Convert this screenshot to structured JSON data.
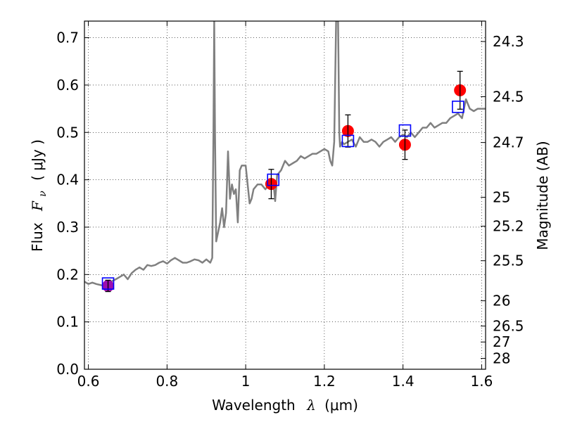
{
  "chart_data": {
    "type": "scatter",
    "xlabel_text": "Wavelength",
    "xlabel_symbol": "λ",
    "xlabel_unit": "(μm)",
    "ylabel_text": "Flux",
    "ylabel_symbol": "F",
    "ylabel_subscript": "ν",
    "ylabel_unit": "( μJy )",
    "y2label": "Magnitude (AB)",
    "xlim": [
      0.59,
      1.61
    ],
    "ylim": [
      0.0,
      0.735
    ],
    "grid": true,
    "x_ticks": [
      {
        "value": 0.6,
        "label": "0.6"
      },
      {
        "value": 0.8,
        "label": "0.8"
      },
      {
        "value": 1.0,
        "label": "1"
      },
      {
        "value": 1.2,
        "label": "1.2"
      },
      {
        "value": 1.4,
        "label": "1.4"
      },
      {
        "value": 1.6,
        "label": "1.6"
      }
    ],
    "y_ticks": [
      {
        "value": 0.0,
        "label": "0.0"
      },
      {
        "value": 0.1,
        "label": "0.1"
      },
      {
        "value": 0.2,
        "label": "0.2"
      },
      {
        "value": 0.3,
        "label": "0.3"
      },
      {
        "value": 0.4,
        "label": "0.4"
      },
      {
        "value": 0.5,
        "label": "0.5"
      },
      {
        "value": 0.6,
        "label": "0.6"
      },
      {
        "value": 0.7,
        "label": "0.7"
      }
    ],
    "y2_ticks": [
      {
        "value": 24.3,
        "label": "24.3"
      },
      {
        "value": 24.5,
        "label": "24.5"
      },
      {
        "value": 24.7,
        "label": "24.7"
      },
      {
        "value": 25.0,
        "label": "25"
      },
      {
        "value": 25.2,
        "label": "25.2"
      },
      {
        "value": 25.5,
        "label": "25.5"
      },
      {
        "value": 26.0,
        "label": "26"
      },
      {
        "value": 26.5,
        "label": "26.5"
      },
      {
        "value": 27.0,
        "label": "27"
      },
      {
        "value": 28.0,
        "label": "28"
      }
    ],
    "template_spectrum": {
      "color": "#808080",
      "x": [
        0.59,
        0.6,
        0.61,
        0.62,
        0.63,
        0.64,
        0.65,
        0.66,
        0.67,
        0.68,
        0.69,
        0.7,
        0.71,
        0.72,
        0.73,
        0.74,
        0.75,
        0.76,
        0.77,
        0.78,
        0.79,
        0.8,
        0.81,
        0.82,
        0.83,
        0.84,
        0.85,
        0.86,
        0.87,
        0.88,
        0.89,
        0.9,
        0.91,
        0.915,
        0.918,
        0.92,
        0.922,
        0.925,
        0.93,
        0.935,
        0.94,
        0.945,
        0.95,
        0.955,
        0.96,
        0.965,
        0.97,
        0.975,
        0.98,
        0.985,
        0.99,
        0.995,
        1.0,
        1.01,
        1.015,
        1.02,
        1.03,
        1.04,
        1.05,
        1.06,
        1.07,
        1.075,
        1.08,
        1.09,
        1.1,
        1.11,
        1.12,
        1.13,
        1.14,
        1.15,
        1.16,
        1.17,
        1.18,
        1.19,
        1.2,
        1.21,
        1.215,
        1.22,
        1.225,
        1.23,
        1.232,
        1.235,
        1.238,
        1.24,
        1.245,
        1.25,
        1.26,
        1.27,
        1.28,
        1.29,
        1.3,
        1.31,
        1.32,
        1.33,
        1.34,
        1.35,
        1.36,
        1.37,
        1.38,
        1.39,
        1.4,
        1.41,
        1.42,
        1.43,
        1.44,
        1.45,
        1.46,
        1.47,
        1.48,
        1.49,
        1.5,
        1.51,
        1.52,
        1.53,
        1.54,
        1.55,
        1.56,
        1.57,
        1.58,
        1.59,
        1.6,
        1.61
      ],
      "y": [
        0.185,
        0.18,
        0.183,
        0.18,
        0.178,
        0.176,
        0.182,
        0.186,
        0.19,
        0.195,
        0.2,
        0.19,
        0.203,
        0.21,
        0.215,
        0.21,
        0.22,
        0.218,
        0.22,
        0.225,
        0.228,
        0.223,
        0.23,
        0.235,
        0.23,
        0.225,
        0.225,
        0.228,
        0.232,
        0.23,
        0.225,
        0.232,
        0.225,
        0.235,
        0.5,
        0.735,
        0.5,
        0.27,
        0.29,
        0.31,
        0.34,
        0.3,
        0.33,
        0.46,
        0.36,
        0.39,
        0.37,
        0.38,
        0.31,
        0.42,
        0.43,
        0.43,
        0.43,
        0.35,
        0.36,
        0.38,
        0.39,
        0.39,
        0.38,
        0.39,
        0.4,
        0.355,
        0.41,
        0.42,
        0.44,
        0.43,
        0.435,
        0.44,
        0.45,
        0.445,
        0.45,
        0.455,
        0.455,
        0.46,
        0.465,
        0.46,
        0.44,
        0.43,
        0.48,
        0.735,
        0.735,
        0.735,
        0.5,
        0.47,
        0.48,
        0.475,
        0.48,
        0.485,
        0.47,
        0.49,
        0.48,
        0.48,
        0.485,
        0.48,
        0.47,
        0.48,
        0.485,
        0.49,
        0.48,
        0.49,
        0.495,
        0.49,
        0.5,
        0.49,
        0.5,
        0.51,
        0.51,
        0.52,
        0.51,
        0.515,
        0.52,
        0.52,
        0.53,
        0.535,
        0.54,
        0.53,
        0.57,
        0.55,
        0.545,
        0.55,
        0.55,
        0.55
      ]
    },
    "series": [
      {
        "marker": "circle",
        "color": "#ff0000",
        "x": [
          1.065,
          1.26,
          1.405,
          1.545
        ],
        "y": [
          0.391,
          0.503,
          0.474,
          0.589
        ],
        "yerr": [
          0.031,
          0.034,
          0.031,
          0.04
        ]
      },
      {
        "marker": "circle",
        "color": "#9b0fb0",
        "x": [
          0.65
        ],
        "y": [
          0.176
        ],
        "yerr": [
          0.012
        ]
      },
      {
        "marker": "open-square",
        "color": "#0000ff",
        "x": [
          0.65,
          1.07,
          1.26,
          1.405,
          1.54
        ],
        "y": [
          0.181,
          0.4,
          0.482,
          0.504,
          0.554
        ]
      }
    ]
  }
}
